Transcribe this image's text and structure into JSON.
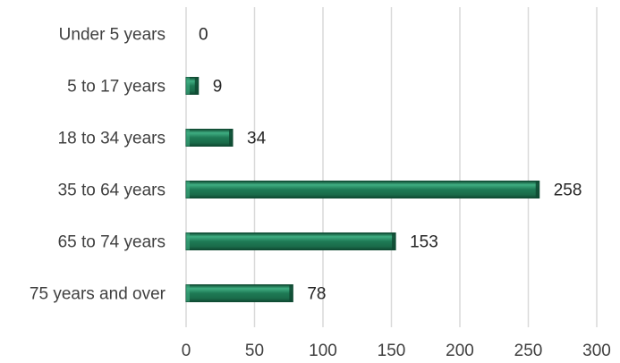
{
  "chart_data": {
    "type": "bar",
    "orientation": "horizontal",
    "title": "",
    "xlabel": "",
    "ylabel": "",
    "categories": [
      "Under 5 years",
      "5 to 17 years",
      "18 to 34 years",
      "35 to 64 years",
      "65 to 74 years",
      "75 years and over"
    ],
    "values": [
      0,
      9,
      34,
      258,
      153,
      78
    ],
    "xlim": [
      0,
      300
    ],
    "x_ticks": [
      0,
      50,
      100,
      150,
      200,
      250,
      300
    ],
    "grid": "vertical",
    "legend": "none",
    "bar_color": "#1e7a55",
    "bar_highlight": "#3fae82",
    "bar_shadow": "#0f4a32"
  }
}
